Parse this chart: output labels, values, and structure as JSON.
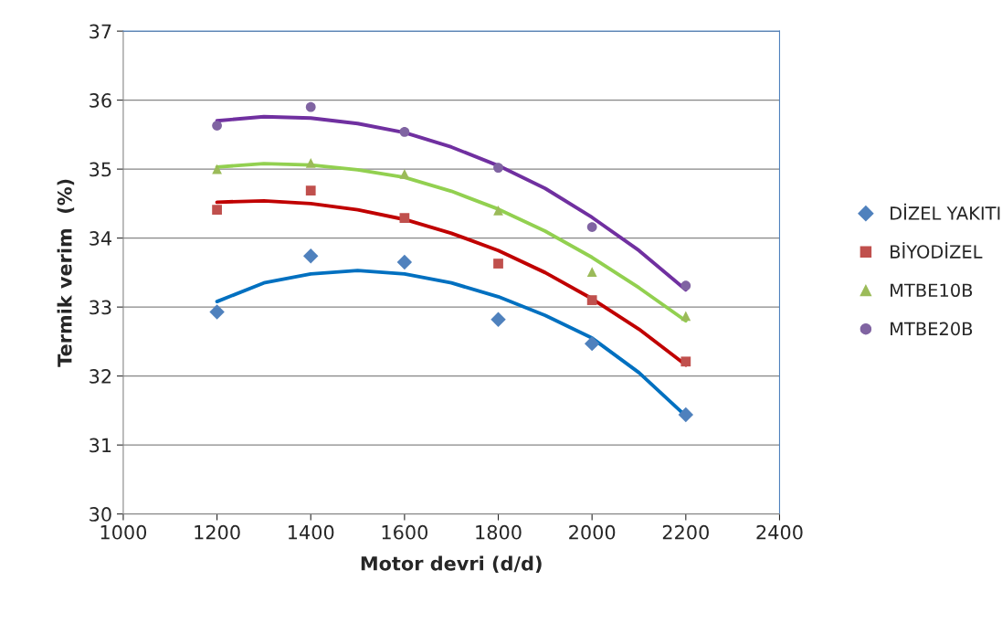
{
  "chart_data": {
    "type": "scatter",
    "xlabel": "Motor devri (d/d)",
    "ylabel": "Termik verim  (%)",
    "x": [
      1200,
      1400,
      1600,
      1800,
      2000,
      2200
    ],
    "xlim": [
      1000,
      2400
    ],
    "xticks": [
      1000,
      1200,
      1400,
      1600,
      1800,
      2000,
      2200,
      2400
    ],
    "ylim": [
      30,
      37
    ],
    "yticks": [
      30,
      31,
      32,
      33,
      34,
      35,
      36,
      37
    ],
    "grid": "y",
    "legend": "right",
    "series": [
      {
        "name": "DİZEL YAKITI",
        "color": "#4f81bd",
        "marker": "diamond",
        "values": [
          32.93,
          33.74,
          33.65,
          32.82,
          32.47,
          31.44
        ]
      },
      {
        "name": "BİYODİZEL",
        "color": "#c0504d",
        "marker": "square",
        "values": [
          34.41,
          34.69,
          34.29,
          33.63,
          33.1,
          32.21
        ]
      },
      {
        "name": "MTBE10B",
        "color": "#9bbb59",
        "marker": "triangle",
        "values": [
          35.0,
          35.09,
          34.93,
          34.4,
          33.51,
          32.87
        ]
      },
      {
        "name": "MTBE20B",
        "color": "#8064a2",
        "marker": "circle",
        "values": [
          35.63,
          35.9,
          35.54,
          35.02,
          34.16,
          33.31
        ]
      },
      {
        "type": "line",
        "color": "#0070c0",
        "x": [
          1200,
          1300,
          1400,
          1500,
          1600,
          1700,
          1800,
          1900,
          2000,
          2100,
          2200
        ],
        "values": [
          33.08,
          33.35,
          33.48,
          33.53,
          33.48,
          33.35,
          33.15,
          32.88,
          32.55,
          32.05,
          31.42
        ]
      },
      {
        "type": "line",
        "color": "#c00000",
        "x": [
          1200,
          1300,
          1400,
          1500,
          1600,
          1700,
          1800,
          1900,
          2000,
          2100,
          2200
        ],
        "values": [
          34.52,
          34.54,
          34.5,
          34.41,
          34.27,
          34.07,
          33.82,
          33.5,
          33.12,
          32.68,
          32.16
        ]
      },
      {
        "type": "line",
        "color": "#92d050",
        "x": [
          1200,
          1300,
          1400,
          1500,
          1600,
          1700,
          1800,
          1900,
          2000,
          2100,
          2200
        ],
        "values": [
          35.03,
          35.08,
          35.06,
          34.99,
          34.88,
          34.68,
          34.42,
          34.1,
          33.72,
          33.28,
          32.8
        ]
      },
      {
        "type": "line",
        "color": "#7030a0",
        "x": [
          1200,
          1300,
          1400,
          1500,
          1600,
          1700,
          1800,
          1900,
          2000,
          2100,
          2200
        ],
        "values": [
          35.7,
          35.76,
          35.74,
          35.66,
          35.53,
          35.32,
          35.05,
          34.72,
          34.3,
          33.82,
          33.25
        ]
      }
    ]
  }
}
